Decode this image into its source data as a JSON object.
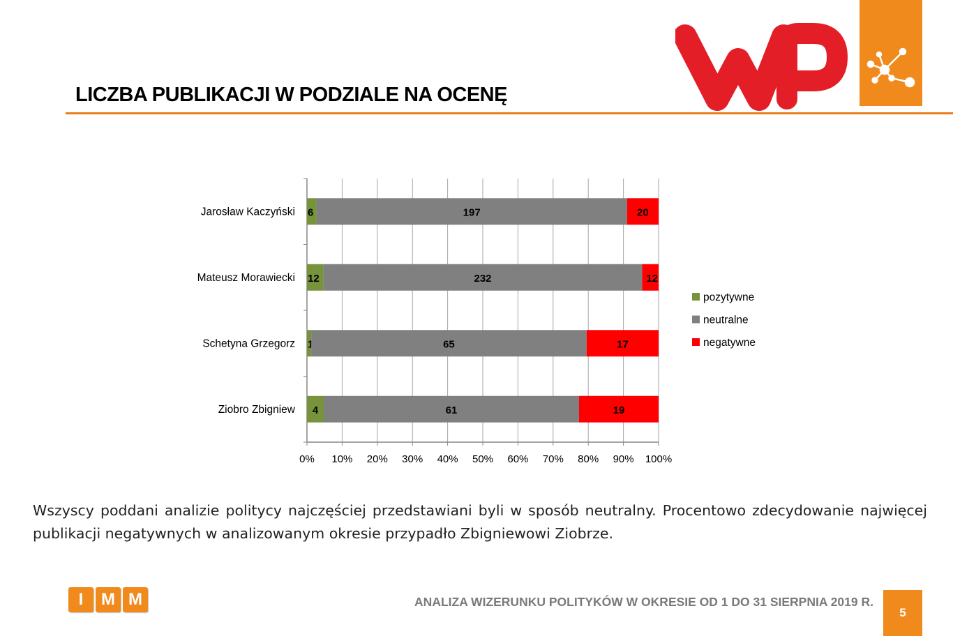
{
  "header": {
    "title": "LICZBA PUBLIKACJI W PODZIALE NA OCENĘ"
  },
  "logos": {
    "wp_logo_text": "WP",
    "imm_letters": [
      "I",
      "M",
      "M"
    ]
  },
  "colors": {
    "accent_orange": "#f08a1c",
    "rule_orange": "#e87e1e",
    "wp_red": "#e41e26",
    "positive": "#77933c",
    "neutral": "#808080",
    "negative": "#ff0000"
  },
  "chart_data": {
    "type": "bar",
    "orientation": "horizontal",
    "stacked": "percent",
    "categories": [
      "Jarosław Kaczyński",
      "Mateusz Morawiecki",
      "Schetyna Grzegorz",
      "Ziobro Zbigniew"
    ],
    "series": [
      {
        "name": "pozytywne",
        "values": [
          6,
          12,
          1,
          4
        ],
        "color": "#77933c"
      },
      {
        "name": "neutralne",
        "values": [
          197,
          232,
          65,
          61
        ],
        "color": "#808080"
      },
      {
        "name": "negatywne",
        "values": [
          20,
          12,
          17,
          19
        ],
        "color": "#ff0000"
      }
    ],
    "x_ticks": [
      "0%",
      "10%",
      "20%",
      "30%",
      "40%",
      "50%",
      "60%",
      "70%",
      "80%",
      "90%",
      "100%"
    ],
    "xlim": [
      0,
      100
    ],
    "grid": "vertical",
    "legend": "right"
  },
  "body": {
    "paragraph": "Wszyscy poddani analizie politycy najczęściej przedstawiani byli w sposób neutralny. Procentowo zdecydowanie najwięcej publikacji negatywnych w analizowanym okresie przypadło Zbigniewowi Ziobrze."
  },
  "footer": {
    "text": "ANALIZA WIZERUNKU POLITYKÓW W OKRESIE OD 1 DO 31 SIERPNIA 2019 R.",
    "page_number": "5"
  }
}
